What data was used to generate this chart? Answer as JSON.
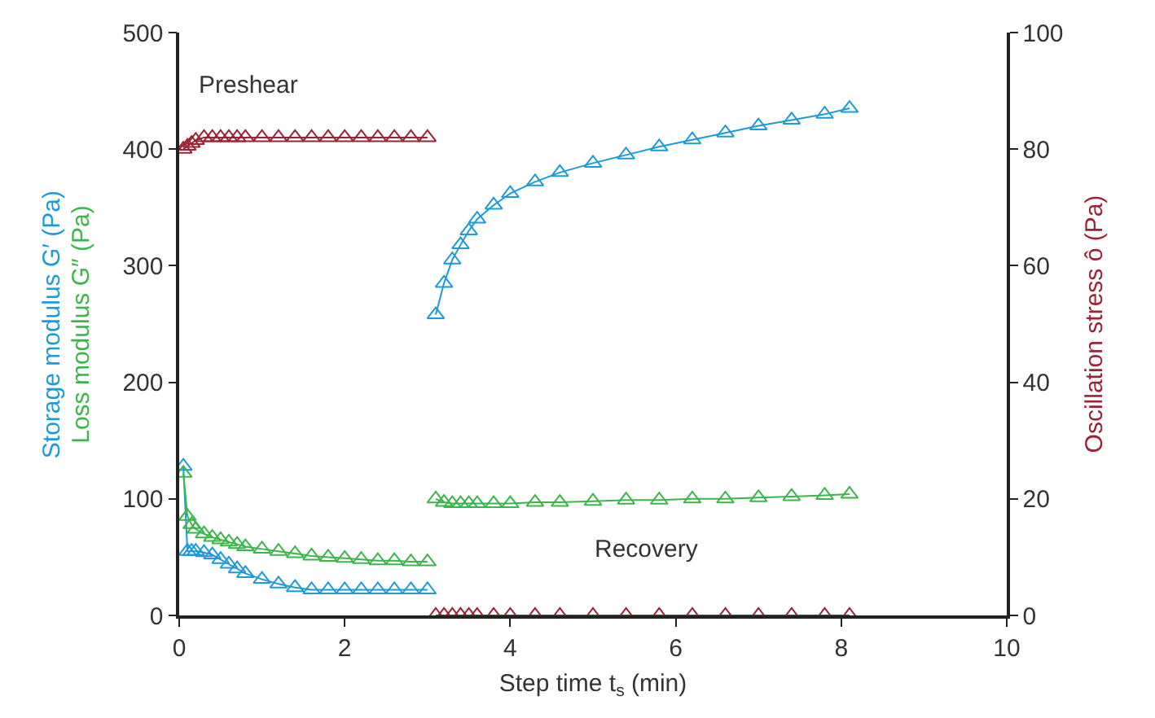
{
  "chart_data": {
    "type": "line",
    "xlabel": "Step time t$_{s}$ (min)",
    "ylabel": "Storage modulus G′ (Pa)",
    "y2label": "Oscillation stress ô (Pa)",
    "x": [
      0.05,
      0.1,
      0.15,
      0.2,
      0.3,
      0.4,
      0.5,
      0.6,
      0.7,
      0.8,
      1.0,
      1.2,
      1.4,
      1.6,
      1.8,
      2.0,
      2.2,
      2.4,
      2.6,
      2.8,
      3.0,
      3.05,
      3.1,
      3.2,
      3.3,
      3.4,
      3.5,
      3.6,
      3.8,
      4.0,
      4.3,
      4.6,
      5.0,
      5.4,
      5.8,
      6.2,
      6.6,
      7.0,
      7.4,
      7.8,
      8.1
    ],
    "series": [
      {
        "color": "#1e9ad6",
        "values": [
          128,
          55,
          55,
          55,
          54,
          52,
          48,
          44,
          40,
          36,
          31,
          27,
          24,
          22,
          22,
          22,
          22,
          22,
          22,
          22,
          22,
          null,
          258,
          285,
          305,
          318,
          330,
          340,
          352,
          362,
          372,
          380,
          388,
          395,
          402,
          408,
          414,
          420,
          425,
          430,
          435
        ]
      },
      {
        "color": "#3cb54a",
        "values": [
          122,
          85,
          78,
          74,
          70,
          67,
          65,
          63,
          61,
          59,
          57,
          55,
          53,
          51,
          50,
          49,
          48,
          47,
          47,
          46,
          46,
          null,
          100,
          97,
          96,
          96,
          96,
          96,
          96,
          96,
          97,
          97,
          98,
          99,
          99,
          100,
          100,
          101,
          102,
          103,
          104
        ]
      },
      {
        "color": "#9b2335",
        "axis": "y2",
        "values": [
          80,
          80.5,
          81,
          81.5,
          82,
          82,
          82,
          82,
          82,
          82,
          82,
          82,
          82,
          82,
          82,
          82,
          82,
          82,
          82,
          82,
          82,
          null,
          0,
          0,
          0,
          0,
          0,
          0,
          0,
          0,
          0,
          0,
          0,
          0,
          0,
          0,
          0,
          0,
          0,
          0,
          0
        ]
      }
    ],
    "annotations": [
      "Loss modulus G″ (Pa)",
      "Preshear",
      "Recovery"
    ],
    "xlim": [
      0,
      10
    ],
    "xticks": [
      0,
      2,
      4,
      6,
      8,
      10
    ],
    "ylim": [
      0,
      500
    ],
    "yticks": [
      0,
      100,
      200,
      300,
      400,
      500
    ],
    "y2lim": [
      0,
      100
    ],
    "y2ticks": [
      0,
      20,
      40,
      60,
      80,
      100
    ],
    "marker": "triangle",
    "line_style": "solid",
    "legend": false
  }
}
